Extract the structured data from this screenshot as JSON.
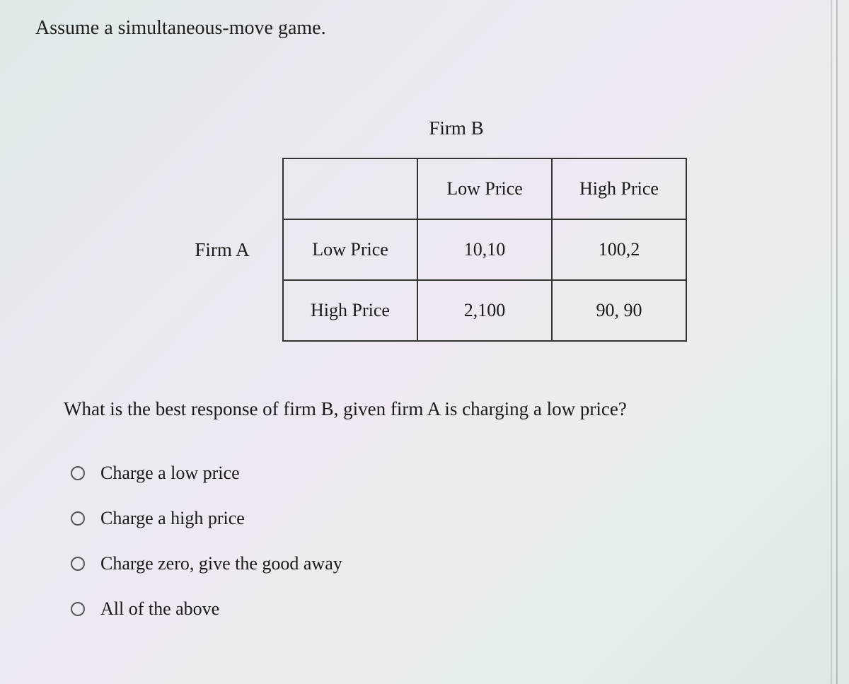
{
  "prompt": "Assume a simultaneous-move game.",
  "matrix": {
    "col_player": "Firm B",
    "row_player": "Firm A",
    "col_headers": [
      "Low Price",
      "High Price"
    ],
    "row_headers": [
      "Low Price",
      "High Price"
    ],
    "cells": [
      [
        "10,10",
        "100,2"
      ],
      [
        "2,100",
        "90, 90"
      ]
    ]
  },
  "question": "What is the best response of firm B, given firm A is charging a low price?",
  "options": [
    "Charge a low price",
    "Charge a high price",
    "Charge zero, give the good away",
    "All of the above"
  ],
  "colors": {
    "text": "#1a1a1a",
    "border": "#333333",
    "radio_border": "#555555"
  }
}
